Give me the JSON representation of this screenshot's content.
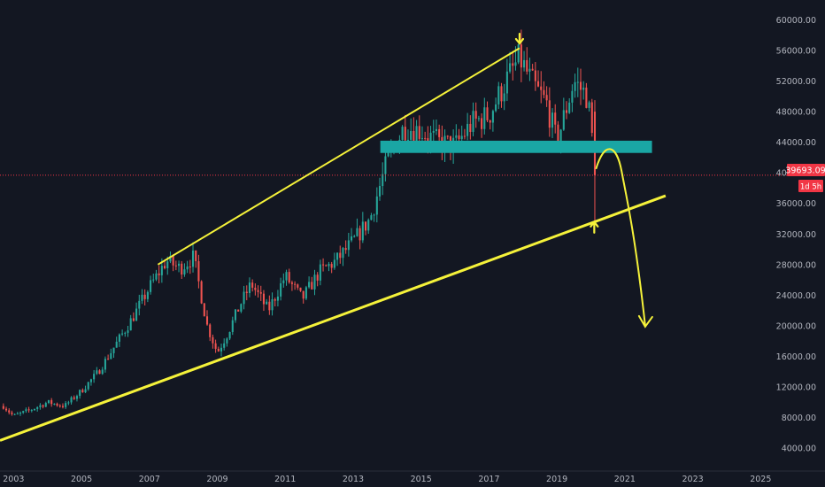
{
  "colors": {
    "background": "#131722",
    "grid": "#1f2330",
    "candle_up": "#26a69a",
    "candle_down": "#ef5350",
    "annotation": "#f5f23a",
    "zone": "#1aa6a4",
    "price_line": "#f23645",
    "axis_text": "#b2b5be"
  },
  "price_axis": {
    "current_price": "39693.09",
    "countdown": "1d 5h"
  },
  "chart_data": {
    "type": "candlestick",
    "title": "",
    "xlabel": "",
    "ylabel": "",
    "grid": false,
    "x_ticks": [
      "2003",
      "2005",
      "2007",
      "2009",
      "2011",
      "2013",
      "2015",
      "2017",
      "2019",
      "2021",
      "2023",
      "2025"
    ],
    "y_ticks": [
      4000,
      8000,
      12000,
      16000,
      20000,
      24000,
      28000,
      32000,
      36000,
      40000,
      44000,
      48000,
      52000,
      56000,
      60000
    ],
    "y_tick_labels": [
      "4000.00",
      "8000.00",
      "12000.00",
      "16000.00",
      "20000.00",
      "24000.00",
      "28000.00",
      "32000.00",
      "36000.00",
      "40000.00",
      "44000.00",
      "48000.00",
      "52000.00",
      "56000.00",
      "60000.00"
    ],
    "xlim": [
      2002.6,
      2025.8
    ],
    "ylim": [
      1000,
      62600
    ],
    "current_price": 39693.09,
    "series": [
      {
        "style": "candles",
        "x": [
          2002.7,
          2003.0,
          2003.5,
          2004.0,
          2004.5,
          2005.0,
          2005.5,
          2006.0,
          2006.5,
          2007.0,
          2007.5,
          2007.9,
          2008.3,
          2008.7,
          2009.0,
          2009.3,
          2009.7,
          2010.0,
          2010.5,
          2011.0,
          2011.5,
          2012.0,
          2012.5,
          2013.0,
          2013.5,
          2014.0,
          2014.5,
          2015.0,
          2015.5,
          2016.0,
          2016.5,
          2017.0,
          2017.5,
          2017.9,
          2018.3,
          2018.7,
          2019.0,
          2019.5,
          2019.9,
          2020.15
        ],
        "close": [
          9500,
          8200,
          9000,
          10000,
          9500,
          11500,
          14000,
          17500,
          21000,
          25000,
          28500,
          27500,
          29000,
          20000,
          16500,
          19000,
          23000,
          25500,
          22000,
          26500,
          23500,
          27000,
          28500,
          31000,
          34000,
          41500,
          46000,
          45500,
          44000,
          43500,
          46500,
          47500,
          52000,
          55000,
          51500,
          49000,
          44000,
          52000,
          50000,
          40000
        ]
      }
    ],
    "annotations": {
      "upper_trendline": {
        "from": [
          2007.25,
          28000
        ],
        "to": [
          2017.9,
          56300
        ]
      },
      "lower_trendline": {
        "from": [
          2002.6,
          5000
        ],
        "to": [
          2022.2,
          37000
        ]
      },
      "support_zone": {
        "x": [
          2013.8,
          2021.8
        ],
        "y": [
          42600,
          44200
        ]
      },
      "peak_marker": {
        "x": 2017.9,
        "y": 57500
      },
      "touch_marker": {
        "x": 2020.1,
        "y": 33100
      },
      "projection_path": [
        [
          2020.15,
          40500
        ],
        [
          2020.4,
          43000
        ],
        [
          2020.75,
          42500
        ],
        [
          2021.3,
          32000
        ],
        [
          2021.6,
          20000
        ]
      ]
    }
  }
}
